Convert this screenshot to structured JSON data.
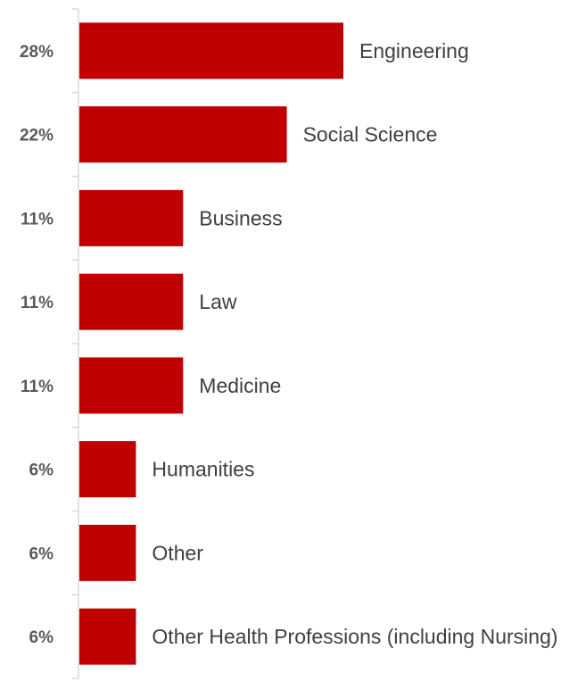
{
  "chart_data": {
    "type": "bar",
    "orientation": "horizontal",
    "bar_color": "#c00000",
    "categories": [
      "Engineering",
      "Social Science",
      "Business",
      "Law",
      "Medicine",
      "Humanities",
      "Other",
      "Other Health Professions (including Nursing)"
    ],
    "values": [
      28,
      22,
      11,
      11,
      11,
      6,
      6,
      6
    ],
    "value_labels": [
      "28%",
      "22%",
      "11%",
      "11%",
      "11%",
      "6%",
      "6%",
      "6%"
    ],
    "xlim": [
      0,
      28
    ],
    "grid": false,
    "legend": "none"
  }
}
